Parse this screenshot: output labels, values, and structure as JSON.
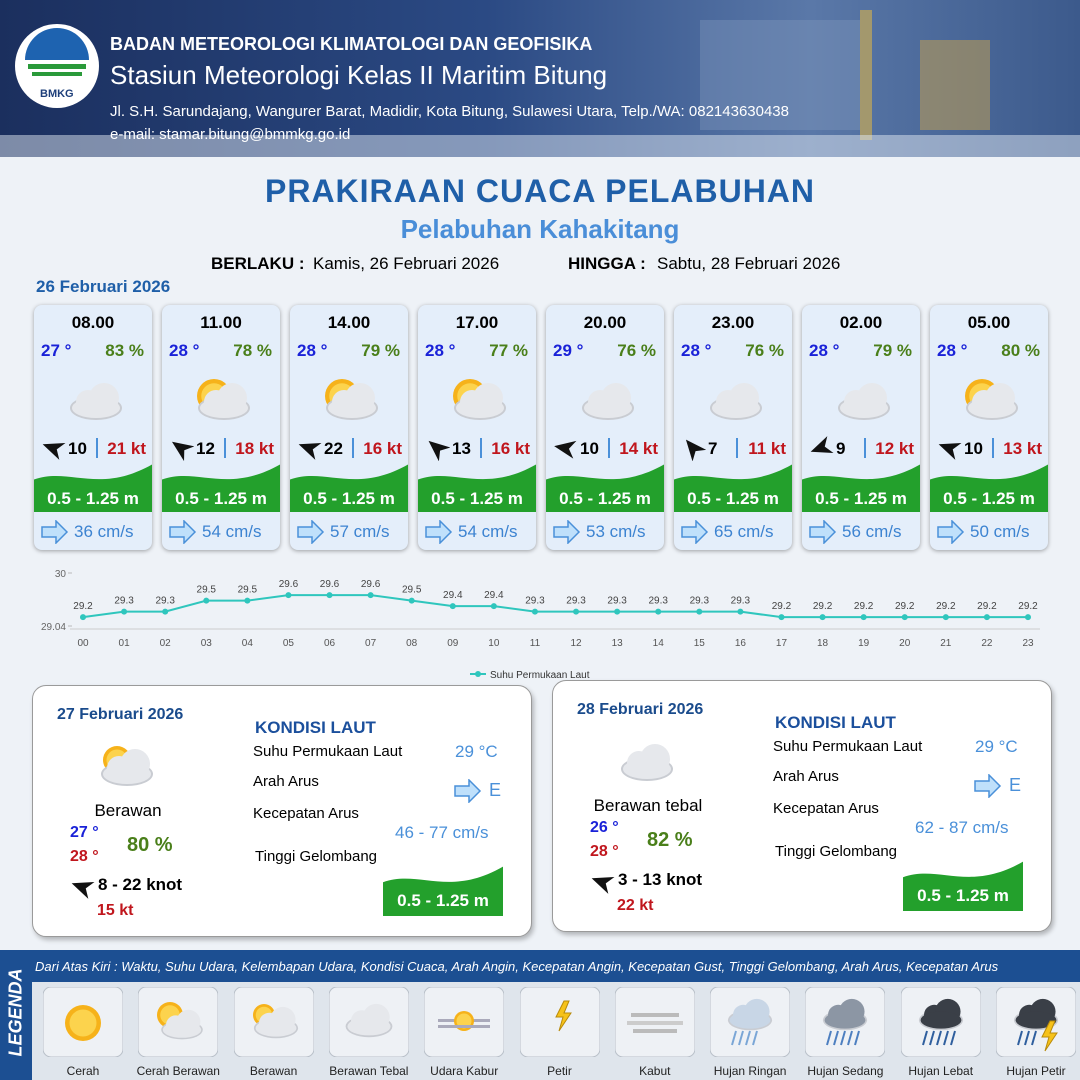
{
  "header": {
    "logo": "BMKG",
    "agency": "BADAN METEOROLOGI KLIMATOLOGI DAN GEOFISIKA",
    "station": "Stasiun Meteorologi Kelas II Maritim Bitung",
    "address": "Jl. S.H. Sarundajang, Wangurer Barat, Madidir, Kota Bitung, Sulawesi Utara, Telp./WA: 082143630438",
    "email": "e-mail: stamar.bitung@bmmkg.go.id"
  },
  "title": "PRAKIRAAN CUACA PELABUHAN",
  "subtitle": "Pelabuhan Kahakitang",
  "validity": {
    "from_label": "BERLAKU :",
    "from": "Kamis, 26 Februari 2026",
    "to_label": "HINGGA :",
    "to": "Sabtu, 28 Februari 2026"
  },
  "day1": {
    "date": "26 Februari 2026",
    "cards": [
      {
        "time": "08.00",
        "temp": "27 °",
        "humidity": "83 %",
        "wind": "10",
        "gust": "21 kt",
        "wave": "0.5 - 1.25 m",
        "current": "36 cm/s"
      },
      {
        "time": "11.00",
        "temp": "28 °",
        "humidity": "78 %",
        "wind": "12",
        "gust": "18 kt",
        "wave": "0.5 - 1.25 m",
        "current": "54 cm/s"
      },
      {
        "time": "14.00",
        "temp": "28 °",
        "humidity": "79 %",
        "wind": "22",
        "gust": "16 kt",
        "wave": "0.5 - 1.25 m",
        "current": "57 cm/s"
      },
      {
        "time": "17.00",
        "temp": "28 °",
        "humidity": "77 %",
        "wind": "13",
        "gust": "16 kt",
        "wave": "0.5 - 1.25 m",
        "current": "54 cm/s"
      },
      {
        "time": "20.00",
        "temp": "29 °",
        "humidity": "76 %",
        "wind": "10",
        "gust": "14 kt",
        "wave": "0.5 - 1.25 m",
        "current": "53 cm/s"
      },
      {
        "time": "23.00",
        "temp": "28 °",
        "humidity": "76 %",
        "wind": "7",
        "gust": "11 kt",
        "wave": "0.5 - 1.25 m",
        "current": "65 cm/s"
      },
      {
        "time": "02.00",
        "temp": "28 °",
        "humidity": "79 %",
        "wind": "9",
        "gust": "12 kt",
        "wave": "0.5 - 1.25 m",
        "current": "56 cm/s"
      },
      {
        "time": "05.00",
        "temp": "28 °",
        "humidity": "80 %",
        "wind": "10",
        "gust": "13 kt",
        "wave": "0.5 - 1.25 m",
        "current": "50 cm/s"
      }
    ]
  },
  "chart_data": {
    "type": "line",
    "categories": [
      "00",
      "01",
      "02",
      "03",
      "04",
      "05",
      "06",
      "07",
      "08",
      "09",
      "10",
      "11",
      "12",
      "13",
      "14",
      "15",
      "16",
      "17",
      "18",
      "19",
      "20",
      "21",
      "22",
      "23"
    ],
    "series": [
      {
        "name": "Suhu Permukaan Laut",
        "color": "#2fc6bd",
        "values": [
          29.2,
          29.3,
          29.3,
          29.5,
          29.5,
          29.6,
          29.6,
          29.6,
          29.5,
          29.4,
          29.4,
          29.3,
          29.3,
          29.3,
          29.3,
          29.3,
          29.3,
          29.2,
          29.2,
          29.2,
          29.2,
          29.2,
          29.2,
          29.2
        ]
      }
    ],
    "ylim": [
      29.04,
      30
    ],
    "yticks": [
      29.04,
      30
    ],
    "grid": false
  },
  "days": [
    {
      "date": "27 Februari 2026",
      "condition": "Berawan",
      "tmin": "27 °",
      "tmax": "28 °",
      "humidity": "80 %",
      "wind": "8  - 22 knot",
      "gust": "15 kt",
      "sea_title": "KONDISI LAUT",
      "sst_label": "Suhu Permukaan Laut",
      "sst": "29 °C",
      "dir_label": "Arah Arus",
      "dir": "E",
      "speed_label": "Kecepatan Arus",
      "speed": "46 - 77 cm/s",
      "wave_label": "Tinggi Gelombang",
      "wave": "0.5 - 1.25 m"
    },
    {
      "date": "28 Februari 2026",
      "condition": "Berawan tebal",
      "tmin": "26 °",
      "tmax": "28 °",
      "humidity": "82 %",
      "wind": "3  - 13 knot",
      "gust": "22 kt",
      "sea_title": "KONDISI LAUT",
      "sst_label": "Suhu Permukaan Laut",
      "sst": "29 °C",
      "dir_label": "Arah Arus",
      "dir": "E",
      "speed_label": "Kecepatan Arus",
      "speed": "62 - 87 cm/s",
      "wave_label": "Tinggi Gelombang",
      "wave": "0.5 - 1.25 m"
    }
  ],
  "legend": {
    "title": "LEGENDA",
    "description": "Dari Atas Kiri : Waktu, Suhu Udara, Kelembapan Udara, Kondisi Cuaca, Arah Angin, Kecepatan Angin, Kecepatan Gust, Tinggi Gelombang, Arah Arus, Kecepatan Arus",
    "items": [
      "Cerah",
      "Cerah Berawan",
      "Berawan",
      "Berawan Tebal",
      "Udara Kabur",
      "Petir",
      "Kabut",
      "Hujan Ringan",
      "Hujan Sedang",
      "Hujan Lebat",
      "Hujan Petir"
    ]
  }
}
